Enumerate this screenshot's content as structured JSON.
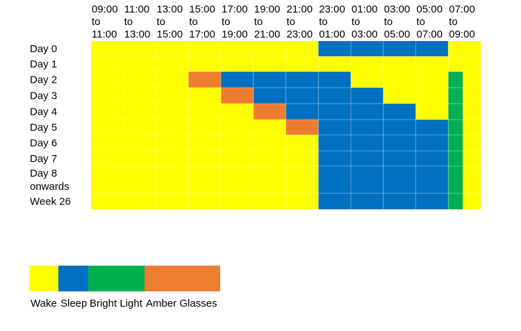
{
  "chart_data": {
    "type": "heatmap",
    "columns": [
      {
        "from": "09:00",
        "to_word": "to",
        "until": "11:00"
      },
      {
        "from": "11:00",
        "to_word": "to",
        "until": "13:00"
      },
      {
        "from": "13:00",
        "to_word": "to",
        "until": "15:00"
      },
      {
        "from": "15:00",
        "to_word": "to",
        "until": "17:00"
      },
      {
        "from": "17:00",
        "to_word": "to",
        "until": "19:00"
      },
      {
        "from": "19:00",
        "to_word": "to",
        "until": "21:00"
      },
      {
        "from": "21:00",
        "to_word": "to",
        "until": "23:00"
      },
      {
        "from": "23:00",
        "to_word": "to",
        "until": "01:00"
      },
      {
        "from": "01:00",
        "to_word": "to",
        "until": "03:00"
      },
      {
        "from": "03:00",
        "to_word": "to",
        "until": "05:00"
      },
      {
        "from": "05:00",
        "to_word": "to",
        "until": "07:00"
      },
      {
        "from": "07:00",
        "to_word": "to",
        "until": "09:00"
      }
    ],
    "rows": [
      {
        "label": [
          "Day 0"
        ],
        "cells": [
          "W",
          "W",
          "W",
          "W",
          "W",
          "W",
          "W",
          "S",
          "S",
          "S",
          "S",
          "W"
        ]
      },
      {
        "label": [
          "Day 1"
        ],
        "cells": [
          "W",
          "W",
          "W",
          "W",
          "W",
          "W",
          "W",
          "W",
          "W",
          "W",
          "W",
          "W"
        ]
      },
      {
        "label": [
          "Day 2"
        ],
        "cells": [
          "W",
          "W",
          "W",
          "A",
          "S",
          "S",
          "S",
          "S",
          "W",
          "W",
          "W",
          "BW"
        ]
      },
      {
        "label": [
          "Day 3"
        ],
        "cells": [
          "W",
          "W",
          "W",
          "W",
          "A",
          "S",
          "S",
          "S",
          "S",
          "W",
          "W",
          "BW"
        ]
      },
      {
        "label": [
          "Day 4"
        ],
        "cells": [
          "W",
          "W",
          "W",
          "W",
          "W",
          "A",
          "S",
          "S",
          "S",
          "S",
          "W",
          "BW"
        ]
      },
      {
        "label": [
          "Day 5"
        ],
        "cells": [
          "W",
          "W",
          "W",
          "W",
          "W",
          "W",
          "A",
          "S",
          "S",
          "S",
          "S",
          "BW"
        ]
      },
      {
        "label": [
          "Day 6"
        ],
        "cells": [
          "W",
          "W",
          "W",
          "W",
          "W",
          "W",
          "W",
          "S",
          "S",
          "S",
          "S",
          "BW"
        ]
      },
      {
        "label": [
          "Day 7"
        ],
        "cells": [
          "W",
          "W",
          "W",
          "W",
          "W",
          "W",
          "W",
          "S",
          "S",
          "S",
          "S",
          "BW"
        ]
      },
      {
        "label": [
          "Day 8",
          "onwards"
        ],
        "cells": [
          "W",
          "W",
          "W",
          "W",
          "W",
          "W",
          "W",
          "S",
          "S",
          "S",
          "S",
          "BW"
        ]
      },
      {
        "label": [
          "Week 26"
        ],
        "cells": [
          "W",
          "W",
          "W",
          "W",
          "W",
          "W",
          "W",
          "S",
          "S",
          "S",
          "S",
          "BW"
        ]
      }
    ],
    "states": {
      "W": {
        "label": "Wake",
        "color": "#ffff00"
      },
      "S": {
        "label": "Sleep",
        "color": "#0070c0"
      },
      "B": {
        "label": "Bright Light",
        "color": "#00b050"
      },
      "A": {
        "label": "Amber Glasses",
        "color": "#ed7d31"
      }
    },
    "legend": [
      {
        "key": "W",
        "label": "Wake"
      },
      {
        "key": "S",
        "label": "Sleep"
      },
      {
        "key": "B",
        "label": "Bright Light"
      },
      {
        "key": "A",
        "label": "Amber Glasses"
      }
    ],
    "grid": true,
    "legend_placement": "bottom-left"
  }
}
